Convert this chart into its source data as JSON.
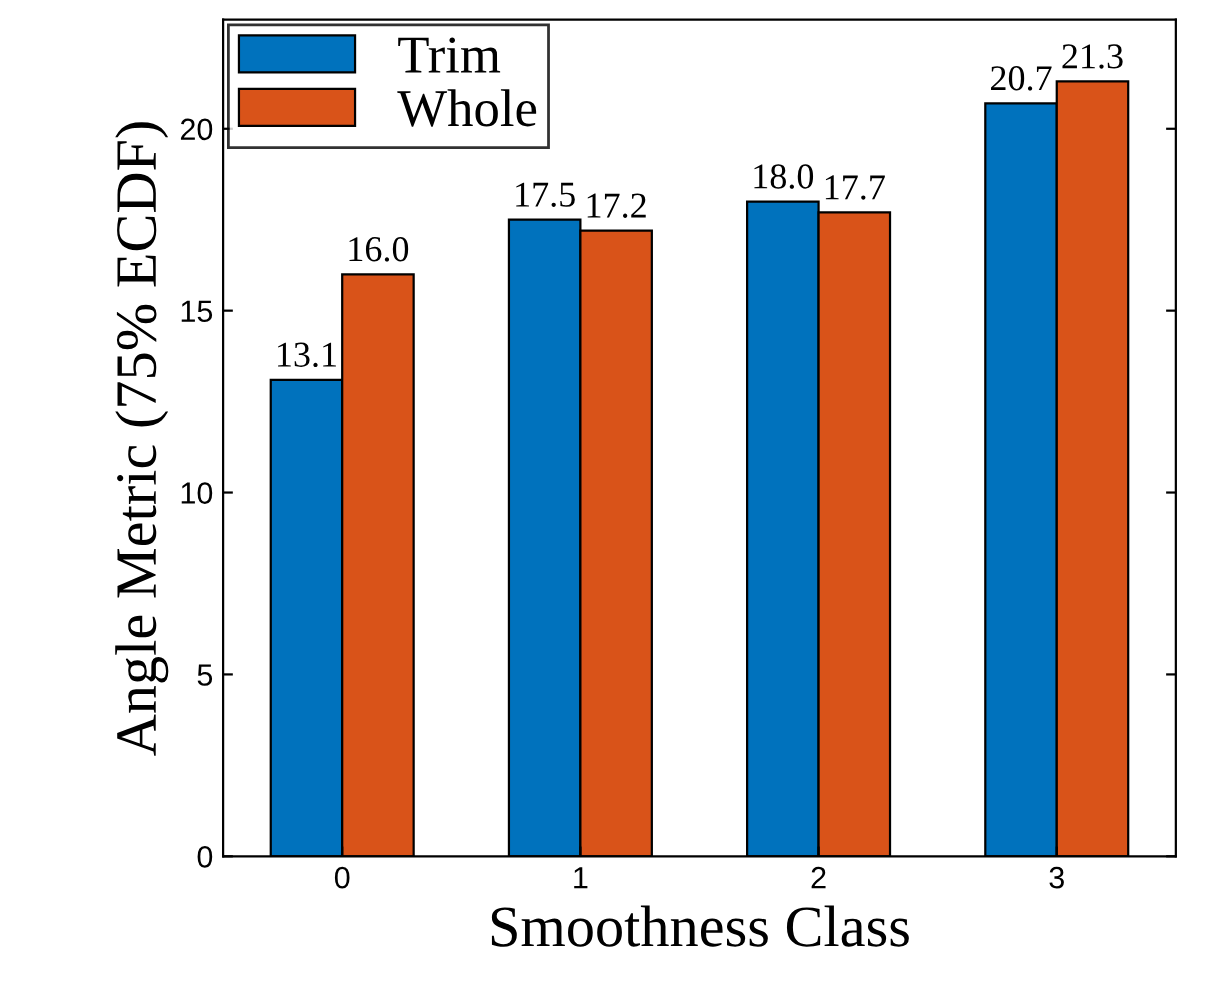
{
  "chart_data": {
    "type": "bar",
    "xlabel": "Smoothness Class",
    "ylabel": "Angle Metric (75% ECDF)",
    "categories": [
      "0",
      "1",
      "2",
      "3"
    ],
    "series": [
      {
        "name": "Trim",
        "color": "#0072bd",
        "values": [
          13.1,
          17.5,
          18.0,
          20.7
        ],
        "value_labels": [
          "13.1",
          "17.5",
          "18.0",
          "20.7"
        ]
      },
      {
        "name": "Whole",
        "color": "#d95319",
        "values": [
          16.0,
          17.2,
          17.7,
          21.3
        ],
        "value_labels": [
          "16.0",
          "17.2",
          "17.7",
          "21.3"
        ]
      }
    ],
    "ylim": [
      0,
      23
    ],
    "yticks": [
      0,
      5,
      10,
      15,
      20
    ],
    "grid": false,
    "legend": "top left"
  }
}
